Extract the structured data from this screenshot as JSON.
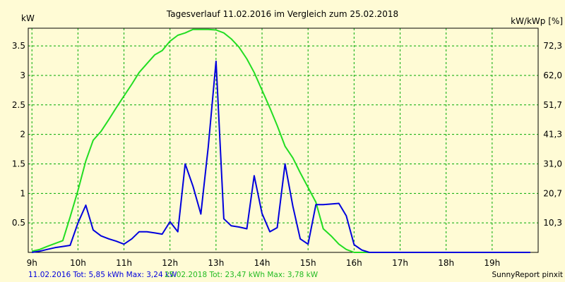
{
  "chart_data": {
    "type": "line",
    "title": "Tagesverlauf 11.02.2016 im Vergleich zum 25.02.2018",
    "ylabel": "kW",
    "y2label": "kW/kWp [%]",
    "xlim": [
      8.92,
      20.0
    ],
    "ylim": [
      0,
      3.8
    ],
    "grid": true,
    "x_ticks": [
      {
        "x": 9,
        "label": "9h"
      },
      {
        "x": 10,
        "label": "10h"
      },
      {
        "x": 11,
        "label": "11h"
      },
      {
        "x": 12,
        "label": "12h"
      },
      {
        "x": 13,
        "label": "13h"
      },
      {
        "x": 14,
        "label": "14h"
      },
      {
        "x": 15,
        "label": "15h"
      },
      {
        "x": 16,
        "label": "16h"
      },
      {
        "x": 17,
        "label": "17h"
      },
      {
        "x": 18,
        "label": "18h"
      },
      {
        "x": 19,
        "label": "19h"
      }
    ],
    "y_ticks": [
      {
        "y": 0.5,
        "label": "0.5"
      },
      {
        "y": 1,
        "label": "1"
      },
      {
        "y": 1.5,
        "label": "1.5"
      },
      {
        "y": 2,
        "label": "2"
      },
      {
        "y": 2.5,
        "label": "2.5"
      },
      {
        "y": 3,
        "label": "3"
      },
      {
        "y": 3.5,
        "label": "3.5"
      }
    ],
    "y2_ticks": [
      {
        "y": 0.5,
        "label": "10,3"
      },
      {
        "y": 1,
        "label": "20,7"
      },
      {
        "y": 1.5,
        "label": "31,0"
      },
      {
        "y": 2,
        "label": "41,3"
      },
      {
        "y": 2.5,
        "label": "51,7"
      },
      {
        "y": 3,
        "label": "62,0"
      },
      {
        "y": 3.5,
        "label": "72,3"
      }
    ],
    "series": [
      {
        "color": "#0000dd",
        "x": [
          9.0,
          9.17,
          9.33,
          9.5,
          9.67,
          9.83,
          10.0,
          10.17,
          10.33,
          10.5,
          10.67,
          10.83,
          11.0,
          11.17,
          11.33,
          11.5,
          11.67,
          11.83,
          12.0,
          12.17,
          12.33,
          12.5,
          12.67,
          12.83,
          13.0,
          13.17,
          13.33,
          13.5,
          13.67,
          13.83,
          14.0,
          14.17,
          14.33,
          14.5,
          14.67,
          14.83,
          15.0,
          15.17,
          15.33,
          15.5,
          15.67,
          15.83,
          16.0,
          16.17,
          16.33,
          16.5,
          16.67,
          16.83,
          17.0,
          17.17,
          17.33,
          17.5,
          17.67,
          17.83,
          18.0,
          18.17,
          18.33,
          18.5,
          18.67,
          18.83,
          19.0,
          19.17,
          19.33,
          19.5,
          19.67,
          19.83
        ],
        "values": [
          0.0,
          0.02,
          0.05,
          0.08,
          0.1,
          0.12,
          0.5,
          0.8,
          0.38,
          0.28,
          0.23,
          0.19,
          0.14,
          0.23,
          0.35,
          0.35,
          0.33,
          0.31,
          0.52,
          0.35,
          1.5,
          1.12,
          0.65,
          1.78,
          3.24,
          0.57,
          0.45,
          0.43,
          0.4,
          1.3,
          0.66,
          0.35,
          0.42,
          1.5,
          0.78,
          0.23,
          0.14,
          0.81,
          0.81,
          0.82,
          0.83,
          0.62,
          0.13,
          0.04,
          0.0,
          0.0,
          0.0,
          0.0,
          0.0,
          0.0,
          0.0,
          0.0,
          0.0,
          0.0,
          0.0,
          0.0,
          0.0,
          0.0,
          0.0,
          0.0,
          0.0,
          0.0,
          0.0,
          0.0,
          0.0,
          0.0
        ]
      },
      {
        "color": "#22dd22",
        "x": [
          9.0,
          9.17,
          9.33,
          9.5,
          9.67,
          9.83,
          10.0,
          10.17,
          10.33,
          10.5,
          10.67,
          10.83,
          11.0,
          11.17,
          11.33,
          11.5,
          11.67,
          11.83,
          12.0,
          12.17,
          12.33,
          12.5,
          12.67,
          12.83,
          13.0,
          13.17,
          13.33,
          13.5,
          13.67,
          13.83,
          14.0,
          14.17,
          14.33,
          14.5,
          14.67,
          14.83,
          15.0,
          15.17,
          15.33,
          15.5,
          15.67,
          15.83,
          16.0,
          16.17,
          16.33,
          16.5,
          16.67,
          16.83,
          17.0,
          17.17,
          17.33,
          17.5,
          17.67,
          17.83,
          18.0,
          18.17,
          18.33,
          18.5,
          18.67,
          18.83,
          19.0,
          19.17,
          19.33,
          19.5,
          19.67,
          19.83
        ],
        "values": [
          0.02,
          0.05,
          0.1,
          0.15,
          0.2,
          0.6,
          1.05,
          1.55,
          1.9,
          2.05,
          2.25,
          2.45,
          2.65,
          2.85,
          3.05,
          3.2,
          3.35,
          3.42,
          3.58,
          3.68,
          3.72,
          3.78,
          3.78,
          3.78,
          3.77,
          3.72,
          3.62,
          3.48,
          3.28,
          3.05,
          2.75,
          2.45,
          2.15,
          1.8,
          1.6,
          1.35,
          1.1,
          0.85,
          0.4,
          0.28,
          0.14,
          0.05,
          0.0,
          0.0,
          0.0,
          0.0,
          0.0,
          0.0,
          0.0,
          0.0,
          0.0,
          0.0,
          0.0,
          0.0,
          0.0,
          0.0,
          0.0,
          0.0,
          0.0,
          0.0,
          0.0,
          0.0,
          0.0,
          0.0,
          0.0,
          0.0
        ]
      }
    ],
    "footer_series1": "11.02.2016 Tot: 5,85 kWh Max: 3,24 kW",
    "footer_series2": "25.02.2018 Tot: 23,47 kWh Max: 3,78 kW",
    "credit": "SunnyReport pinxit"
  }
}
